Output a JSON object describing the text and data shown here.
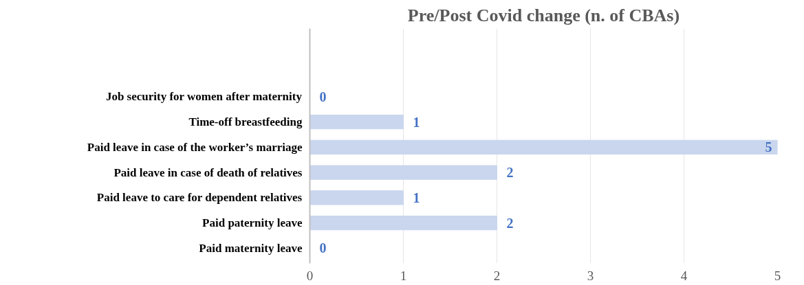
{
  "chart_data": {
    "type": "bar",
    "orientation": "horizontal",
    "title": "Pre/Post Covid change (n. of CBAs)",
    "categories": [
      "Job security for women after maternity",
      "Time-off breastfeeding",
      "Paid leave in case of the worker’s marriage",
      "Paid leave in case of death of relatives",
      "Paid leave to care for dependent relatives",
      "Paid paternity leave",
      "Paid maternity leave"
    ],
    "values": [
      0,
      1,
      5,
      2,
      1,
      2,
      0
    ],
    "color": "#cad6ee",
    "data_labels": true,
    "xlim": [
      0,
      5
    ],
    "xticks": [
      0,
      1,
      2,
      3,
      4,
      5
    ],
    "grid": "x"
  }
}
